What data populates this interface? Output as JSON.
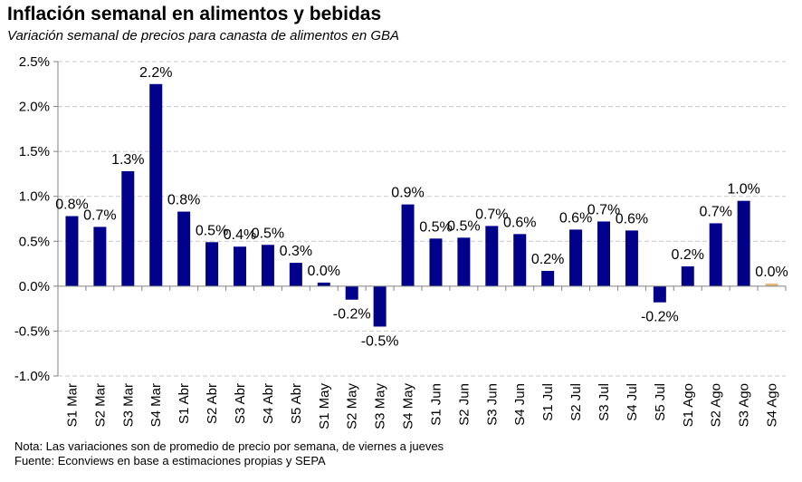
{
  "title": "Inflación semanal en alimentos y bebidas",
  "subtitle": "Variación semanal de precios para canasta de alimentos en GBA",
  "notes": {
    "line1": "Nota: Las variaciones son de promedio de precio por semana, de viernes a jueves",
    "line2": "Fuente: Econviews en base a estimaciones propias y SEPA"
  },
  "chart_data": {
    "type": "bar",
    "title": "Inflación semanal en alimentos y bebidas",
    "subtitle": "Variación semanal de precios para canasta de alimentos en GBA",
    "xlabel": "",
    "ylabel": "",
    "ylim": [
      -1.0,
      2.5
    ],
    "yticks": [
      -1.0,
      -0.5,
      0.0,
      0.5,
      1.0,
      1.5,
      2.0,
      2.5
    ],
    "ytick_labels": [
      "-1.0%",
      "-0.5%",
      "0.0%",
      "0.5%",
      "1.0%",
      "1.5%",
      "2.0%",
      "2.5%"
    ],
    "grid": true,
    "legend": "none",
    "categories": [
      "S1 Mar",
      "S2 Mar",
      "S3 Mar",
      "S4 Mar",
      "S1 Abr",
      "S2 Abr",
      "S3 Abr",
      "S4 Abr",
      "S5 Abr",
      "S1 May",
      "S2 May",
      "S3 May",
      "S4 May",
      "S1 Jun",
      "S2 Jun",
      "S3 Jun",
      "S4 Jun",
      "S1 Jul",
      "S2 Jul",
      "S3 Jul",
      "S4 Jul",
      "S5 Jul",
      "S1 Ago",
      "S2 Ago",
      "S3 Ago",
      "S4 Ago"
    ],
    "values": [
      0.78,
      0.66,
      1.28,
      2.25,
      0.83,
      0.49,
      0.44,
      0.46,
      0.26,
      0.04,
      -0.15,
      -0.45,
      0.91,
      0.53,
      0.54,
      0.67,
      0.58,
      0.17,
      0.63,
      0.72,
      0.62,
      -0.18,
      0.22,
      0.7,
      0.95,
      0.03
    ],
    "data_labels": [
      "0.8%",
      "0.7%",
      "1.3%",
      "2.2%",
      "0.8%",
      "0.5%",
      "0.4%",
      "0.5%",
      "0.3%",
      "0.0%",
      "-0.2%",
      "-0.5%",
      "0.9%",
      "0.5%",
      "0.5%",
      "0.7%",
      "0.6%",
      "0.2%",
      "0.6%",
      "0.7%",
      "0.6%",
      "-0.2%",
      "0.2%",
      "0.7%",
      "1.0%",
      "0.0%"
    ],
    "bar_color": "#00008b",
    "highlight_color": "#e8b57a",
    "highlight_index": 25
  }
}
